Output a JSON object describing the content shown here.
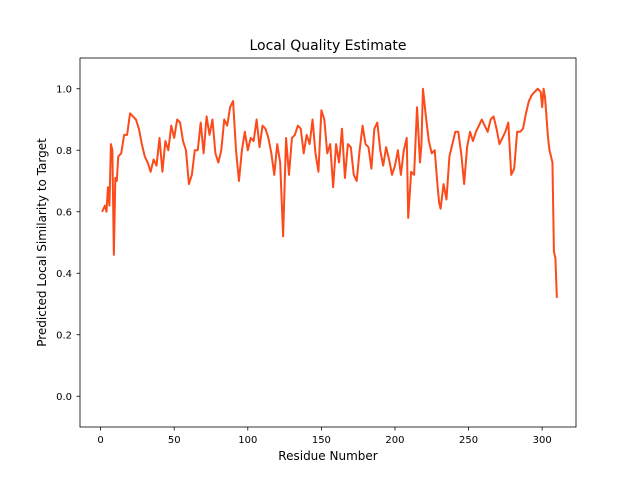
{
  "chart_data": {
    "type": "line",
    "title": "Local Quality Estimate",
    "xlabel": "Residue Number",
    "ylabel": "Predicted Local Similarity to Target",
    "xlim": [
      -14,
      323
    ],
    "ylim": [
      -0.1,
      1.1
    ],
    "xticks": [
      0,
      50,
      100,
      150,
      200,
      250,
      300
    ],
    "yticks": [
      0.0,
      0.2,
      0.4,
      0.6,
      0.8,
      1.0
    ],
    "ytick_labels": [
      "0.0",
      "0.2",
      "0.4",
      "0.6",
      "0.8",
      "1.0"
    ],
    "grid": false,
    "legend": "none",
    "series": [
      {
        "color": "#FC4A1A",
        "points": [
          [
            1,
            0.6
          ],
          [
            2,
            0.61
          ],
          [
            3,
            0.62
          ],
          [
            4,
            0.6
          ],
          [
            5,
            0.68
          ],
          [
            6,
            0.62
          ],
          [
            7,
            0.82
          ],
          [
            8,
            0.8
          ],
          [
            9,
            0.46
          ],
          [
            10,
            0.71
          ],
          [
            11,
            0.7
          ],
          [
            12,
            0.78
          ],
          [
            14,
            0.79
          ],
          [
            16,
            0.85
          ],
          [
            18,
            0.85
          ],
          [
            20,
            0.92
          ],
          [
            22,
            0.91
          ],
          [
            24,
            0.9
          ],
          [
            26,
            0.87
          ],
          [
            28,
            0.82
          ],
          [
            30,
            0.78
          ],
          [
            32,
            0.76
          ],
          [
            34,
            0.73
          ],
          [
            36,
            0.77
          ],
          [
            38,
            0.75
          ],
          [
            40,
            0.84
          ],
          [
            42,
            0.73
          ],
          [
            44,
            0.83
          ],
          [
            46,
            0.8
          ],
          [
            48,
            0.88
          ],
          [
            50,
            0.84
          ],
          [
            52,
            0.9
          ],
          [
            54,
            0.89
          ],
          [
            56,
            0.83
          ],
          [
            58,
            0.8
          ],
          [
            60,
            0.69
          ],
          [
            62,
            0.72
          ],
          [
            64,
            0.8
          ],
          [
            66,
            0.8
          ],
          [
            68,
            0.89
          ],
          [
            70,
            0.79
          ],
          [
            72,
            0.91
          ],
          [
            74,
            0.85
          ],
          [
            76,
            0.9
          ],
          [
            78,
            0.79
          ],
          [
            80,
            0.76
          ],
          [
            82,
            0.8
          ],
          [
            84,
            0.9
          ],
          [
            86,
            0.88
          ],
          [
            88,
            0.94
          ],
          [
            90,
            0.96
          ],
          [
            92,
            0.8
          ],
          [
            94,
            0.7
          ],
          [
            96,
            0.8
          ],
          [
            98,
            0.86
          ],
          [
            100,
            0.8
          ],
          [
            102,
            0.84
          ],
          [
            104,
            0.83
          ],
          [
            106,
            0.9
          ],
          [
            108,
            0.81
          ],
          [
            110,
            0.88
          ],
          [
            112,
            0.87
          ],
          [
            114,
            0.84
          ],
          [
            116,
            0.79
          ],
          [
            118,
            0.72
          ],
          [
            120,
            0.82
          ],
          [
            122,
            0.76
          ],
          [
            124,
            0.52
          ],
          [
            126,
            0.84
          ],
          [
            128,
            0.72
          ],
          [
            130,
            0.84
          ],
          [
            132,
            0.85
          ],
          [
            134,
            0.88
          ],
          [
            136,
            0.87
          ],
          [
            138,
            0.79
          ],
          [
            140,
            0.85
          ],
          [
            142,
            0.82
          ],
          [
            144,
            0.9
          ],
          [
            146,
            0.79
          ],
          [
            148,
            0.73
          ],
          [
            150,
            0.93
          ],
          [
            152,
            0.9
          ],
          [
            154,
            0.79
          ],
          [
            156,
            0.82
          ],
          [
            158,
            0.68
          ],
          [
            160,
            0.82
          ],
          [
            162,
            0.76
          ],
          [
            164,
            0.87
          ],
          [
            166,
            0.71
          ],
          [
            168,
            0.82
          ],
          [
            170,
            0.81
          ],
          [
            172,
            0.72
          ],
          [
            174,
            0.7
          ],
          [
            176,
            0.8
          ],
          [
            178,
            0.88
          ],
          [
            180,
            0.82
          ],
          [
            182,
            0.81
          ],
          [
            184,
            0.74
          ],
          [
            186,
            0.87
          ],
          [
            188,
            0.89
          ],
          [
            190,
            0.8
          ],
          [
            192,
            0.75
          ],
          [
            194,
            0.81
          ],
          [
            196,
            0.77
          ],
          [
            198,
            0.72
          ],
          [
            200,
            0.75
          ],
          [
            202,
            0.8
          ],
          [
            204,
            0.72
          ],
          [
            206,
            0.8
          ],
          [
            208,
            0.84
          ],
          [
            209,
            0.58
          ],
          [
            211,
            0.73
          ],
          [
            213,
            0.72
          ],
          [
            215,
            0.94
          ],
          [
            217,
            0.76
          ],
          [
            218,
            0.82
          ],
          [
            219,
            1.0
          ],
          [
            221,
            0.91
          ],
          [
            223,
            0.83
          ],
          [
            225,
            0.79
          ],
          [
            227,
            0.8
          ],
          [
            229,
            0.68
          ],
          [
            230,
            0.63
          ],
          [
            231,
            0.61
          ],
          [
            233,
            0.69
          ],
          [
            235,
            0.64
          ],
          [
            237,
            0.78
          ],
          [
            239,
            0.82
          ],
          [
            241,
            0.86
          ],
          [
            243,
            0.86
          ],
          [
            245,
            0.79
          ],
          [
            247,
            0.69
          ],
          [
            249,
            0.81
          ],
          [
            251,
            0.86
          ],
          [
            253,
            0.83
          ],
          [
            255,
            0.86
          ],
          [
            257,
            0.88
          ],
          [
            259,
            0.9
          ],
          [
            261,
            0.88
          ],
          [
            263,
            0.86
          ],
          [
            265,
            0.9
          ],
          [
            267,
            0.91
          ],
          [
            269,
            0.87
          ],
          [
            271,
            0.82
          ],
          [
            273,
            0.84
          ],
          [
            275,
            0.86
          ],
          [
            277,
            0.89
          ],
          [
            279,
            0.72
          ],
          [
            281,
            0.74
          ],
          [
            283,
            0.86
          ],
          [
            285,
            0.86
          ],
          [
            287,
            0.87
          ],
          [
            289,
            0.92
          ],
          [
            291,
            0.96
          ],
          [
            293,
            0.98
          ],
          [
            295,
            0.99
          ],
          [
            297,
            1.0
          ],
          [
            299,
            0.99
          ],
          [
            300,
            0.94
          ],
          [
            301,
            1.0
          ],
          [
            302,
            0.97
          ],
          [
            304,
            0.84
          ],
          [
            305,
            0.8
          ],
          [
            306,
            0.78
          ],
          [
            307,
            0.76
          ],
          [
            308,
            0.47
          ],
          [
            309,
            0.45
          ],
          [
            310,
            0.32
          ]
        ]
      }
    ]
  }
}
